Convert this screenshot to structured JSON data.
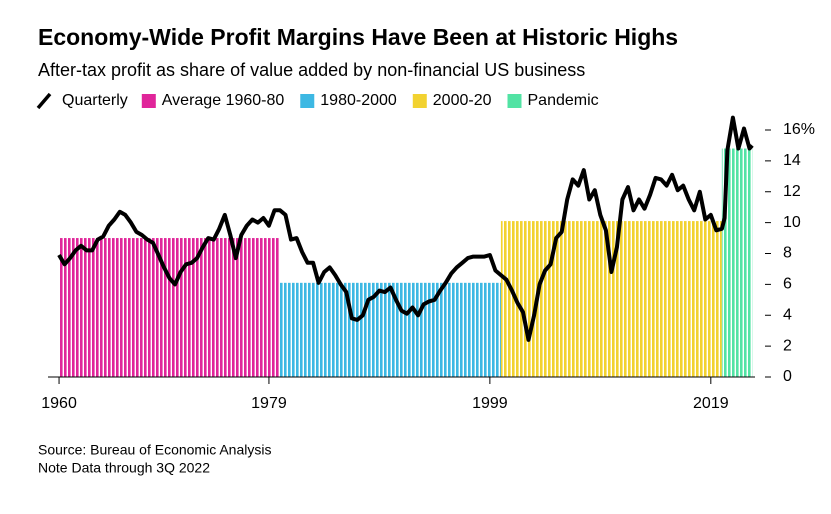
{
  "chart_data": {
    "type": "line",
    "title": "Economy-Wide Profit Margins Have Been at Historic Highs",
    "subtitle": "After-tax profit as share of value added by non-financial US business",
    "source": "Source: Bureau of Economic Analysis",
    "note": "Note Data through 3Q 2022",
    "xlim": [
      1959,
      2023
    ],
    "ylim": [
      0,
      16
    ],
    "xticks": [
      1960,
      1979,
      1999,
      2019
    ],
    "yticks": [
      0,
      2,
      4,
      6,
      8,
      10,
      12,
      14,
      {
        "value": 16,
        "label": "16%"
      }
    ],
    "periods": [
      {
        "name": "Average 1960-80",
        "color": "#e0259a",
        "start": 1960,
        "end": 1980,
        "value": 9.0
      },
      {
        "name": "1980-2000",
        "color": "#3db8e3",
        "start": 1980,
        "end": 2000,
        "value": 6.1
      },
      {
        "name": "2000-20",
        "color": "#f2d230",
        "start": 2000,
        "end": 2020,
        "value": 10.1
      },
      {
        "name": "Pandemic",
        "color": "#52e3a4",
        "start": 2020,
        "end": 2022.75,
        "value": 14.8
      }
    ],
    "series": [
      {
        "name": "Quarterly",
        "color": "#000000",
        "x": [
          1960,
          1960.5,
          1961,
          1961.5,
          1962,
          1962.5,
          1963,
          1963.5,
          1964,
          1964.5,
          1965,
          1965.5,
          1966,
          1966.5,
          1967,
          1967.5,
          1968,
          1968.5,
          1969,
          1969.5,
          1970,
          1970.5,
          1971,
          1971.5,
          1972,
          1972.5,
          1973,
          1973.5,
          1974,
          1974.5,
          1975,
          1975.5,
          1976,
          1976.5,
          1977,
          1977.5,
          1978,
          1978.5,
          1979,
          1979.5,
          1980,
          1980.5,
          1981,
          1981.5,
          1982,
          1982.5,
          1983,
          1983.5,
          1984,
          1984.5,
          1985,
          1985.5,
          1986,
          1986.5,
          1987,
          1987.5,
          1988,
          1988.5,
          1989,
          1989.5,
          1990,
          1990.5,
          1991,
          1991.5,
          1992,
          1992.5,
          1993,
          1993.5,
          1994,
          1994.5,
          1995,
          1995.5,
          1996,
          1996.5,
          1997,
          1997.5,
          1998,
          1998.5,
          1999,
          1999.5,
          2000,
          2000.5,
          2001,
          2001.5,
          2002,
          2002.5,
          2003,
          2003.5,
          2004,
          2004.5,
          2005,
          2005.5,
          2006,
          2006.5,
          2007,
          2007.5,
          2008,
          2008.5,
          2009,
          2009.5,
          2010,
          2010.5,
          2011,
          2011.5,
          2012,
          2012.5,
          2013,
          2013.5,
          2014,
          2014.5,
          2015,
          2015.5,
          2016,
          2016.5,
          2017,
          2017.5,
          2018,
          2018.5,
          2019,
          2019.5,
          2020,
          2020.25,
          2020.5,
          2021,
          2021.5,
          2022,
          2022.5,
          2022.75
        ],
        "values": [
          7.9,
          7.3,
          7.7,
          8.2,
          8.5,
          8.2,
          8.2,
          8.9,
          9.1,
          9.8,
          10.2,
          10.7,
          10.5,
          10.0,
          9.4,
          9.2,
          8.9,
          8.7,
          7.9,
          7.1,
          6.4,
          6.0,
          6.8,
          7.3,
          7.4,
          7.7,
          8.4,
          9.0,
          8.9,
          9.6,
          10.5,
          9.2,
          7.7,
          9.2,
          9.8,
          10.2,
          10.0,
          10.3,
          9.8,
          10.8,
          10.8,
          10.5,
          8.9,
          9.0,
          8.1,
          7.4,
          7.4,
          6.1,
          6.8,
          7.1,
          6.6,
          6.0,
          5.5,
          3.8,
          3.7,
          4.0,
          5.0,
          5.2,
          5.6,
          5.5,
          5.8,
          5.0,
          4.3,
          4.1,
          4.5,
          4.0,
          4.7,
          4.9,
          5.0,
          5.6,
          6.1,
          6.7,
          7.1,
          7.4,
          7.7,
          7.8,
          7.8,
          7.8,
          7.9,
          6.9,
          6.6,
          6.3,
          5.6,
          4.8,
          4.2,
          2.4,
          4.0,
          6.0,
          6.9,
          7.3,
          9.0,
          9.4,
          11.5,
          12.8,
          12.4,
          13.4,
          11.5,
          12.1,
          10.5,
          9.5,
          6.8,
          8.4,
          11.5,
          12.3,
          10.8,
          11.5,
          10.9,
          11.8,
          12.9,
          12.8,
          12.4,
          13.1,
          12.1,
          12.4,
          11.5,
          10.8,
          12.0,
          10.2,
          10.5,
          9.5,
          9.6,
          10.3,
          14.7,
          16.8,
          14.8,
          16.1,
          14.8,
          15.0
        ]
      }
    ]
  }
}
